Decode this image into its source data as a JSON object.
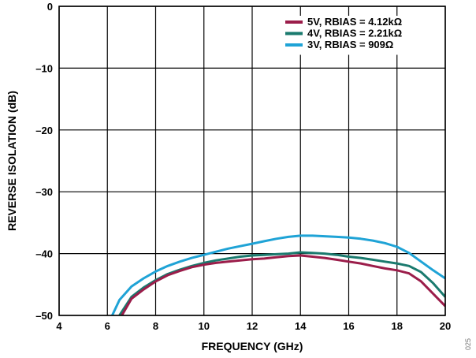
{
  "figure_number": "025",
  "chart_data": {
    "type": "line",
    "xlabel": "FREQUENCY (GHz)",
    "ylabel": "REVERSE ISOLATION (dB)",
    "xlim": [
      4,
      20
    ],
    "ylim": [
      -50,
      0
    ],
    "xticks": [
      4,
      6,
      8,
      10,
      12,
      14,
      16,
      18,
      20
    ],
    "yticks": [
      0,
      -10,
      -20,
      -30,
      -40,
      -50
    ],
    "xtick_labels": [
      "4",
      "6",
      "8",
      "10",
      "12",
      "14",
      "16",
      "18",
      "20"
    ],
    "ytick_labels": [
      "0",
      "–10",
      "–20",
      "–30",
      "–40",
      "–50"
    ],
    "grid": true,
    "legend_position": "top-right",
    "series": [
      {
        "name": "5V, RBIAS = 4.12kΩ",
        "color": "#9b1d4a",
        "x": [
          6.6,
          7,
          7.5,
          8,
          8.5,
          9,
          9.5,
          10,
          10.5,
          11,
          11.5,
          12,
          12.5,
          13,
          13.5,
          14,
          14.5,
          15,
          15.5,
          16,
          16.5,
          17,
          17.5,
          18,
          18.5,
          19,
          19.5,
          20
        ],
        "y": [
          -50,
          -47.3,
          -45.8,
          -44.5,
          -43.5,
          -42.8,
          -42.2,
          -41.8,
          -41.5,
          -41.3,
          -41.1,
          -40.9,
          -40.8,
          -40.6,
          -40.4,
          -40.3,
          -40.5,
          -40.7,
          -41.0,
          -41.3,
          -41.6,
          -42.0,
          -42.4,
          -42.7,
          -43.2,
          -44.5,
          -46.5,
          -48.5
        ]
      },
      {
        "name": "4V, RBIAS = 2.21kΩ",
        "color": "#1a7a6e",
        "x": [
          6.5,
          7,
          7.5,
          8,
          8.5,
          9,
          9.5,
          10,
          10.5,
          11,
          11.5,
          12,
          12.5,
          13,
          13.5,
          14,
          14.5,
          15,
          15.5,
          16,
          16.5,
          17,
          17.5,
          18,
          18.5,
          19,
          19.5,
          20
        ],
        "y": [
          -50,
          -47.0,
          -45.5,
          -44.3,
          -43.3,
          -42.6,
          -42.0,
          -41.5,
          -41.1,
          -40.8,
          -40.5,
          -40.3,
          -40.2,
          -40.1,
          -40.0,
          -39.8,
          -39.9,
          -40.0,
          -40.2,
          -40.5,
          -40.7,
          -41.0,
          -41.3,
          -41.6,
          -42.0,
          -43.0,
          -44.8,
          -47.0
        ]
      },
      {
        "name": "3V, RBIAS = 909Ω",
        "color": "#1fa3d6",
        "x": [
          6.2,
          6.5,
          7,
          7.5,
          8,
          8.5,
          9,
          9.5,
          10,
          10.5,
          11,
          11.5,
          12,
          12.5,
          13,
          13.5,
          14,
          14.5,
          15,
          15.5,
          16,
          16.5,
          17,
          17.5,
          18,
          18.5,
          19,
          19.5,
          20
        ],
        "y": [
          -50,
          -47.5,
          -45.3,
          -44.0,
          -42.9,
          -42.0,
          -41.3,
          -40.7,
          -40.2,
          -39.7,
          -39.2,
          -38.8,
          -38.4,
          -38.0,
          -37.6,
          -37.3,
          -37.1,
          -37.1,
          -37.2,
          -37.3,
          -37.4,
          -37.6,
          -37.9,
          -38.3,
          -38.9,
          -39.9,
          -41.3,
          -42.7,
          -44.0
        ]
      }
    ]
  }
}
